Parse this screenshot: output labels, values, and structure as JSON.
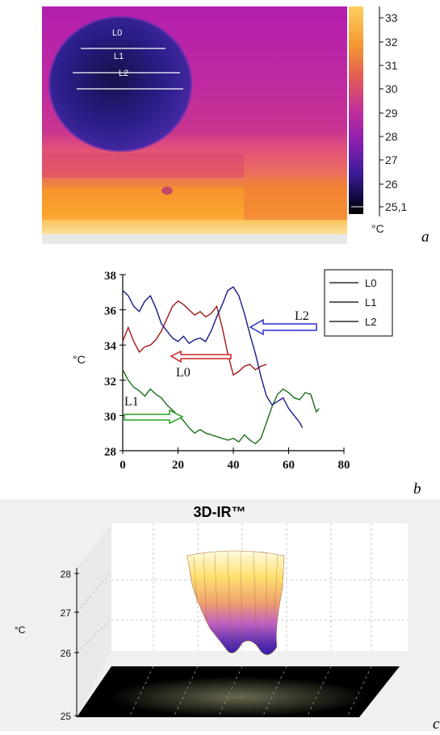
{
  "panel_a": {
    "letter": "a",
    "line_labels": [
      "L0",
      "L1",
      "L2"
    ],
    "colorbar": {
      "unit": "°C",
      "ticks": [
        "33",
        "32",
        "31",
        "30",
        "29",
        "28",
        "27",
        "26",
        "25,1"
      ]
    }
  },
  "panel_b": {
    "letter": "b",
    "annotations": {
      "l0": "L0",
      "l1": "L1",
      "l2": "L2"
    }
  },
  "panel_c": {
    "letter": "c",
    "title": "3D-IR™"
  },
  "chart_data": [
    {
      "type": "line",
      "ylabel": "°C",
      "xlim": [
        0,
        80
      ],
      "ylim": [
        28,
        38
      ],
      "x_ticks": [
        0,
        20,
        40,
        60,
        80
      ],
      "y_ticks": [
        28,
        30,
        32,
        34,
        36,
        38
      ],
      "legend_position": "top-right",
      "legend": [
        "L0",
        "L1",
        "L2"
      ],
      "series": [
        {
          "name": "L0",
          "color": "#a01818",
          "x": [
            0,
            2,
            4,
            6,
            8,
            10,
            12,
            14,
            16,
            18,
            20,
            22,
            24,
            26,
            28,
            30,
            32,
            34,
            36,
            38,
            40,
            42,
            44,
            46,
            48,
            50,
            52
          ],
          "y": [
            34.2,
            35.0,
            34.2,
            33.6,
            33.9,
            34.0,
            34.3,
            34.8,
            35.5,
            36.2,
            36.5,
            36.3,
            36.0,
            35.7,
            35.9,
            35.6,
            35.8,
            36.2,
            35.0,
            33.5,
            32.3,
            32.5,
            32.8,
            32.9,
            32.6,
            32.8,
            32.9
          ]
        },
        {
          "name": "L1",
          "color": "#1a6e1a",
          "x": [
            0,
            2,
            4,
            6,
            8,
            10,
            12,
            14,
            16,
            18,
            20,
            22,
            24,
            26,
            28,
            30,
            32,
            34,
            36,
            38,
            40,
            42,
            44,
            46,
            48,
            50,
            52,
            54,
            56,
            58,
            60,
            62,
            64,
            66,
            68,
            70,
            71
          ],
          "y": [
            32.6,
            32.0,
            31.6,
            31.4,
            31.1,
            31.5,
            31.2,
            31.0,
            30.6,
            30.3,
            30.0,
            29.7,
            29.3,
            29.0,
            29.2,
            29.0,
            28.9,
            28.8,
            28.7,
            28.6,
            28.7,
            28.5,
            28.9,
            28.6,
            28.4,
            28.7,
            29.6,
            30.5,
            31.2,
            31.5,
            31.3,
            31.0,
            30.9,
            31.3,
            31.2,
            30.2,
            30.4
          ]
        },
        {
          "name": "L2",
          "color": "#1a1a8a",
          "x": [
            0,
            2,
            4,
            6,
            8,
            10,
            12,
            14,
            16,
            18,
            20,
            22,
            24,
            26,
            28,
            30,
            32,
            34,
            36,
            38,
            40,
            42,
            44,
            46,
            48,
            50,
            52,
            54,
            56,
            58,
            60,
            62,
            64,
            65
          ],
          "y": [
            37.1,
            36.8,
            36.2,
            35.9,
            36.5,
            36.8,
            36.1,
            35.2,
            34.8,
            34.4,
            34.2,
            34.5,
            34.1,
            34.3,
            34.4,
            34.2,
            34.8,
            35.6,
            36.3,
            37.1,
            37.3,
            36.8,
            35.8,
            34.6,
            33.5,
            32.2,
            31.1,
            30.6,
            30.8,
            31.0,
            30.4,
            30.0,
            29.6,
            29.3
          ]
        }
      ]
    },
    {
      "type": "area",
      "ylabel": "°C",
      "ylim": [
        25,
        28
      ],
      "y_ticks": [
        25,
        26,
        27,
        28
      ]
    }
  ]
}
